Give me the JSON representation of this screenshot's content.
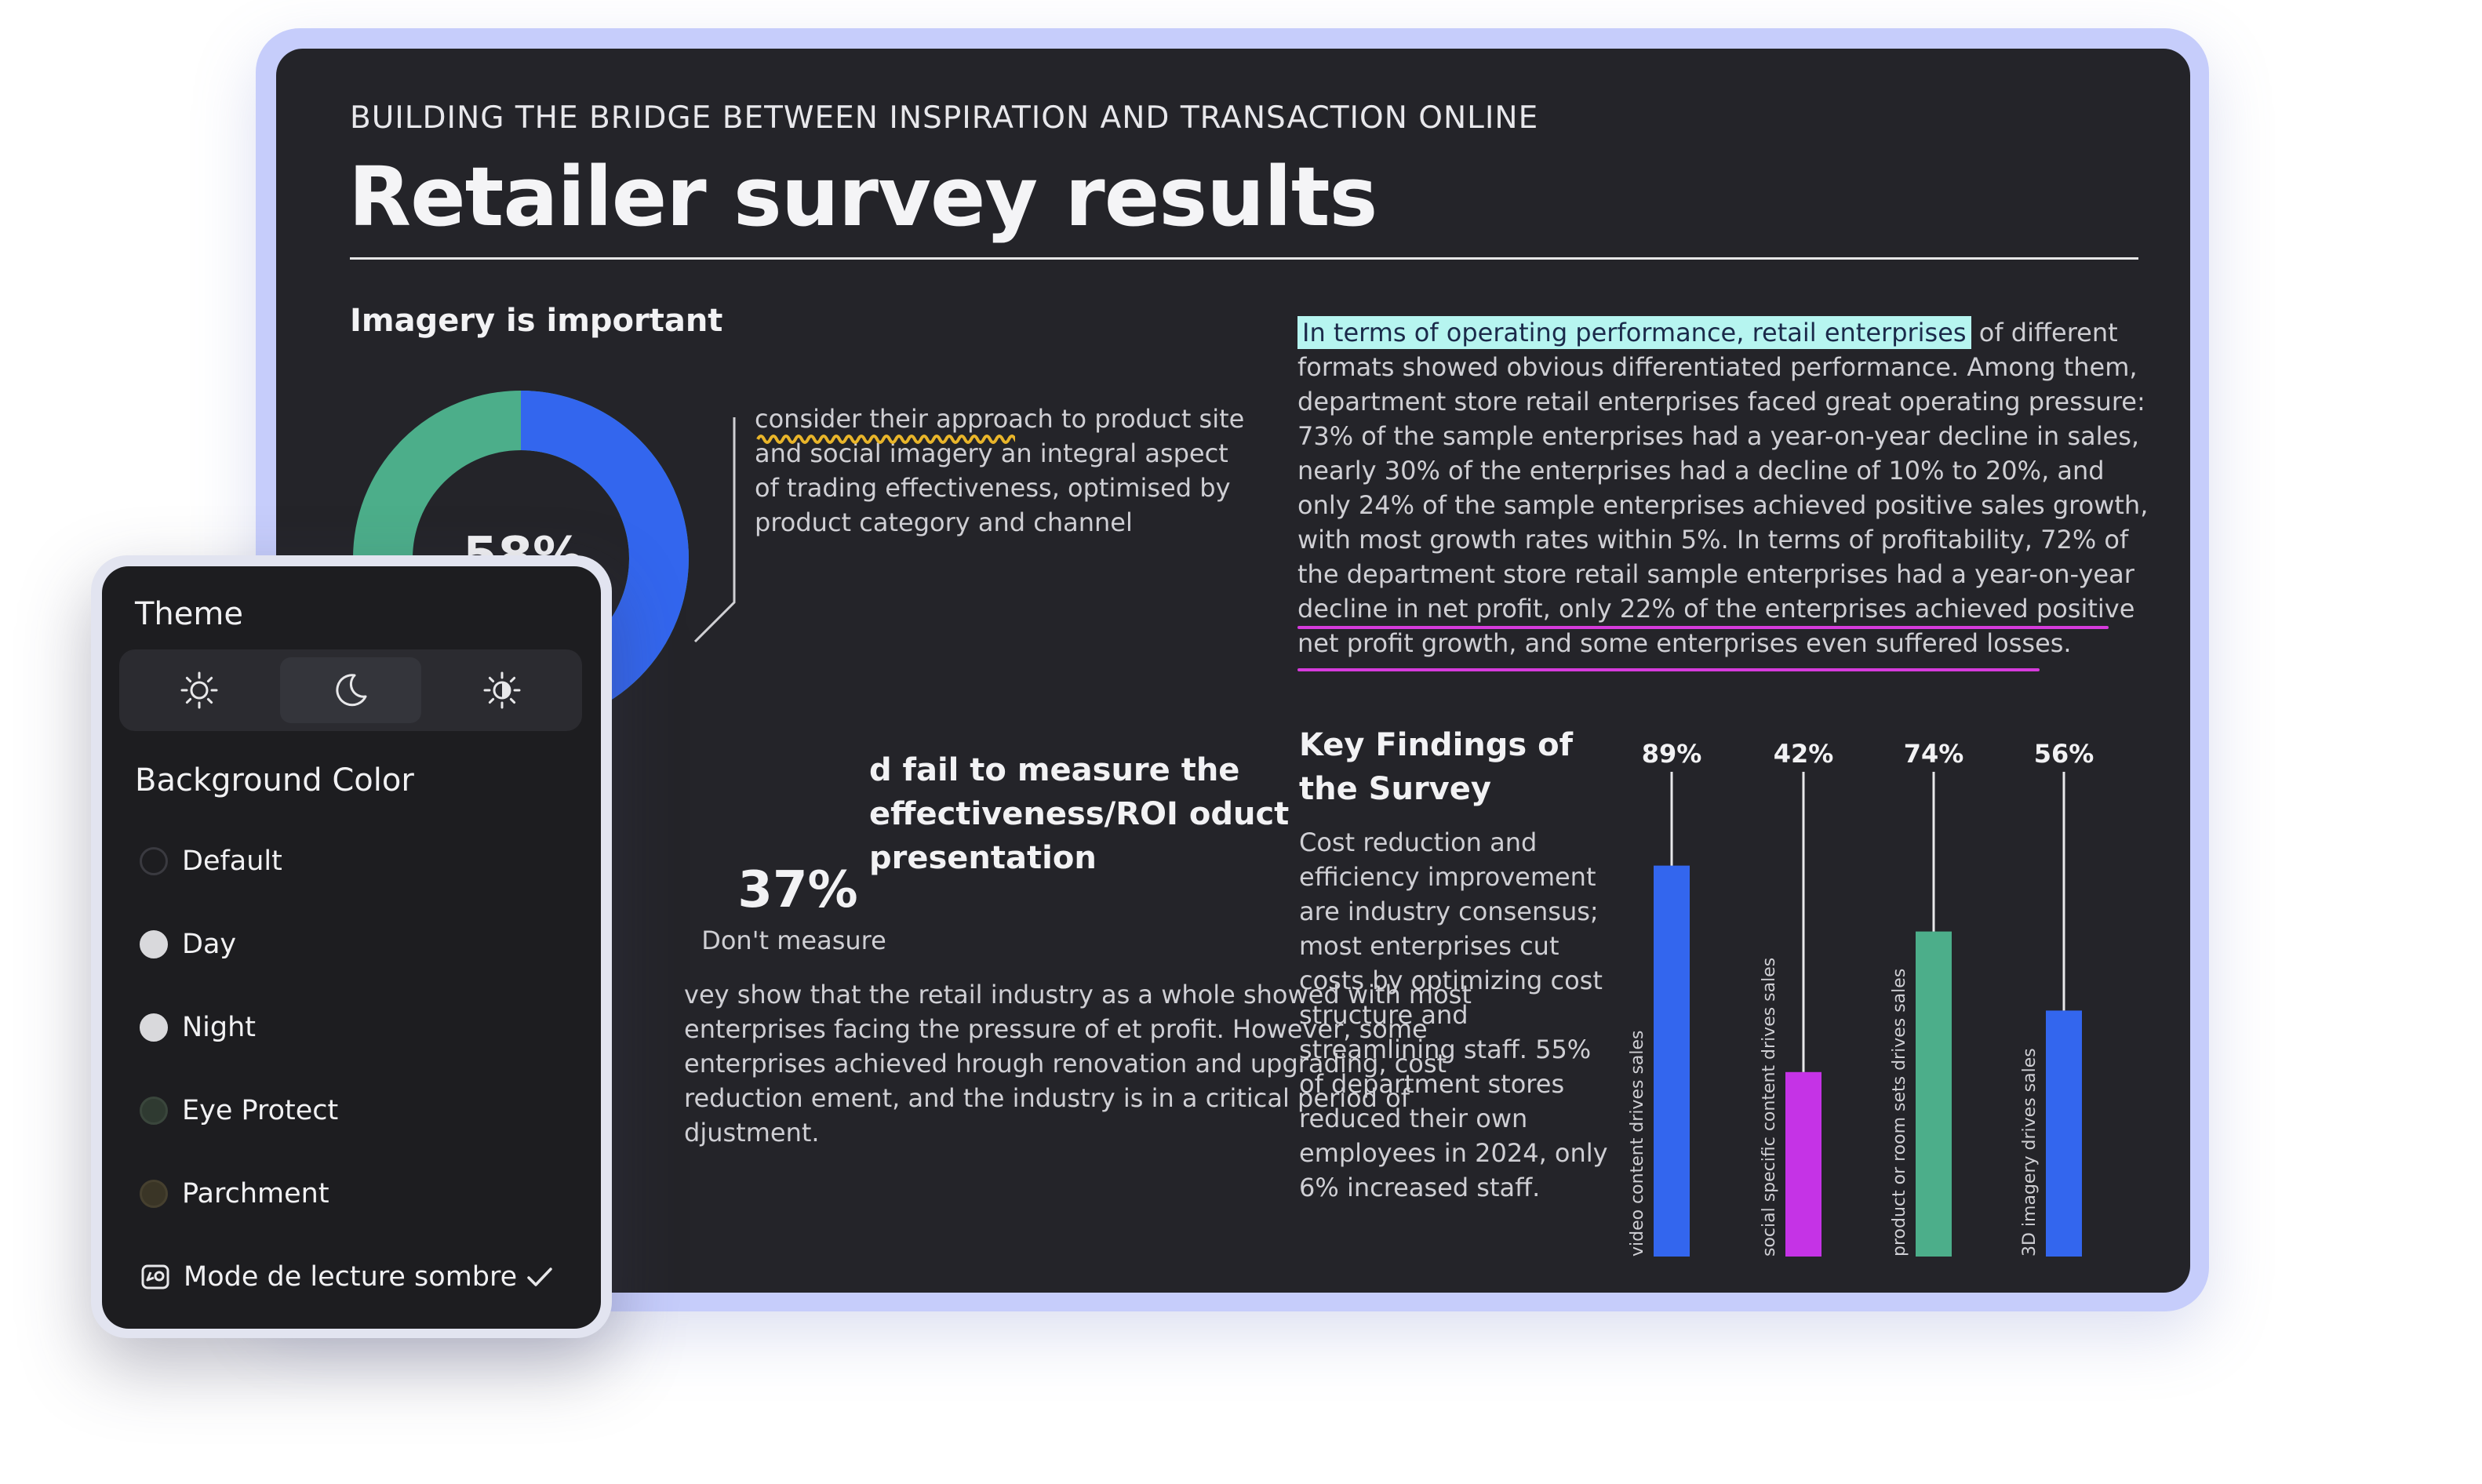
{
  "document": {
    "kicker": "BUILDING THE BRIDGE BETWEEN INSPIRATION AND TRANSACTION ONLINE",
    "title": "Retailer survey results",
    "imagery": {
      "heading": "Imagery is important",
      "donut_value": "58%",
      "donut_percent": 58,
      "body_underlined": "consider their approach",
      "body_rest": " to product site and social imagery an integral aspect of trading effectiveness, optimised by product category and channel"
    },
    "measure": {
      "heading": "d fail to measure the effectiveness/ROI oduct presentation",
      "stat_value": "37%",
      "stat_label": "Don't measure",
      "body": "vey show that the retail industry as a whole showed with most enterprises facing the pressure of et profit. However, some enterprises achieved hrough renovation and upgrading, cost reduction ement, and the industry is in a critical period of djustment."
    },
    "operating": {
      "highlighted": "In terms of operating performance, retail enterprises",
      "rest": " of different formats showed obvious differentiated performance. Among them, department store retail enterprises faced great operating pressure: 73% of the sample enterprises had a year-on-year decline in sales, nearly 30% of the enterprises had a decline of 10% to 20%, and only 24% of the sample enterprises achieved positive sales growth, with most growth rates within 5%. In terms of profitability, 72% of the department store retail sample enterprises had a year-on-year decline in net profit, only 22% of the enterprises achieved positive net profit growth, and some enterprises even suffered losses."
    },
    "findings": {
      "heading": "Key Findings of the Survey",
      "body": "Cost reduction and efficiency improvement are industry consensus; most enterprises cut costs by optimizing cost structure and streamlining staff. 55% of department stores reduced their own employees in 2024, only 6% increased staff."
    }
  },
  "chart_data": {
    "type": "bar",
    "categories": [
      "video content drives sales",
      "social specific content drives sales",
      "product or room sets drives sales",
      "3D imagery drives sales"
    ],
    "values": [
      89,
      42,
      74,
      56
    ],
    "value_labels": [
      "89%",
      "42%",
      "74%",
      "56%"
    ],
    "colors": [
      "#3366ee",
      "#c533e6",
      "#4cae8a",
      "#3366ee"
    ],
    "ylim": [
      0,
      100
    ]
  },
  "reader_panel": {
    "theme_title": "Theme",
    "theme_options": [
      {
        "icon": "sun-icon"
      },
      {
        "icon": "moon-icon",
        "active": true
      },
      {
        "icon": "auto-brightness-icon"
      }
    ],
    "bg_title": "Background Color",
    "bg_options": [
      {
        "label": "Default",
        "color": "#1d1d20"
      },
      {
        "label": "Day",
        "color": "#d9d9dc"
      },
      {
        "label": "Night",
        "color": "#d9d9dc"
      },
      {
        "label": "Eye Protect",
        "color": "#2f3a31"
      },
      {
        "label": "Parchment",
        "color": "#3a3526"
      }
    ],
    "dark_mode_label": "Mode de lecture sombre",
    "dark_mode_checked": true
  }
}
